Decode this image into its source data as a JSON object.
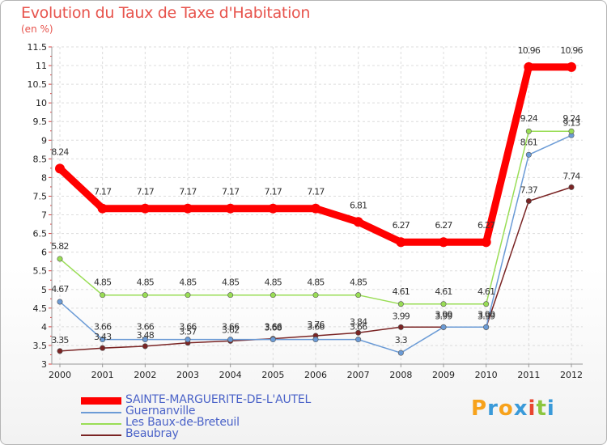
{
  "chart_data": {
    "type": "line",
    "title": "Evolution du Taux de Taxe d'Habitation",
    "unit_label": "(en %)",
    "x": [
      "2000",
      "2001",
      "2002",
      "2003",
      "2004",
      "2005",
      "2006",
      "2007",
      "2008",
      "2009",
      "2010",
      "2011",
      "2012"
    ],
    "yticks": [
      "3",
      "3.5",
      "4",
      "4.5",
      "5",
      "5.5",
      "6",
      "6.5",
      "7",
      "7.5",
      "8",
      "8.5",
      "9",
      "9.5",
      "10",
      "10.5",
      "11",
      "11.5"
    ],
    "ylim": [
      3,
      11.5
    ],
    "grid": true,
    "legend_position": "bottom-left",
    "series": [
      {
        "name": "SAINTE-MARGUERITE-DE-L'AUTEL",
        "color": "#ff0000",
        "values": [
          8.24,
          7.17,
          7.17,
          7.17,
          7.17,
          7.17,
          7.17,
          6.81,
          6.27,
          6.27,
          6.27,
          10.96,
          10.96
        ],
        "labels": [
          "8.24",
          "7.17",
          "7.17",
          "7.17",
          "7.17",
          "7.17",
          "7.17",
          "6.81",
          "6.27",
          "6.27",
          "6.27",
          "10.96",
          "10.96"
        ]
      },
      {
        "name": "Guernanville",
        "color": "#6b9bd6",
        "values": [
          4.67,
          3.66,
          3.66,
          3.66,
          3.66,
          3.66,
          3.66,
          3.66,
          3.3,
          3.99,
          3.99,
          8.61,
          9.13
        ],
        "labels": [
          "4.67",
          "3.66",
          "3.66",
          "3.66",
          "3.66",
          "3.66",
          "3.66",
          "3.66",
          "3.3",
          "3.99",
          "3.99",
          "8.61",
          "9.13"
        ]
      },
      {
        "name": "Les Baux-de-Breteuil",
        "color": "#99dd55",
        "values": [
          5.82,
          4.85,
          4.85,
          4.85,
          4.85,
          4.85,
          4.85,
          4.85,
          4.61,
          4.61,
          4.61,
          9.24,
          9.24
        ],
        "labels": [
          "5.82",
          "4.85",
          "4.85",
          "4.85",
          "4.85",
          "4.85",
          "4.85",
          "4.85",
          "4.61",
          "4.61",
          "4.61",
          "9.24",
          "9.24"
        ]
      },
      {
        "name": "Beaubray",
        "color": "#7a2424",
        "values": [
          3.35,
          3.43,
          3.48,
          3.57,
          3.62,
          3.68,
          3.76,
          3.84,
          3.99,
          3.99,
          3.99,
          7.37,
          7.74
        ],
        "labels": [
          "3.35",
          "3.43",
          "3.48",
          "3.57",
          "3.62",
          "3.68",
          "3.76",
          "3.84",
          "3.99",
          "3.99",
          "3.99",
          "7.37",
          "7.74"
        ]
      }
    ]
  },
  "brand": {
    "letters": [
      "P",
      "r",
      "o",
      "x",
      "i",
      "t",
      "i"
    ],
    "colors": [
      "#f7a21b",
      "#3a9ad9",
      "#f7a21b",
      "#3a9ad9",
      "#e8452f",
      "#8cc63f",
      "#3a9ad9"
    ]
  }
}
